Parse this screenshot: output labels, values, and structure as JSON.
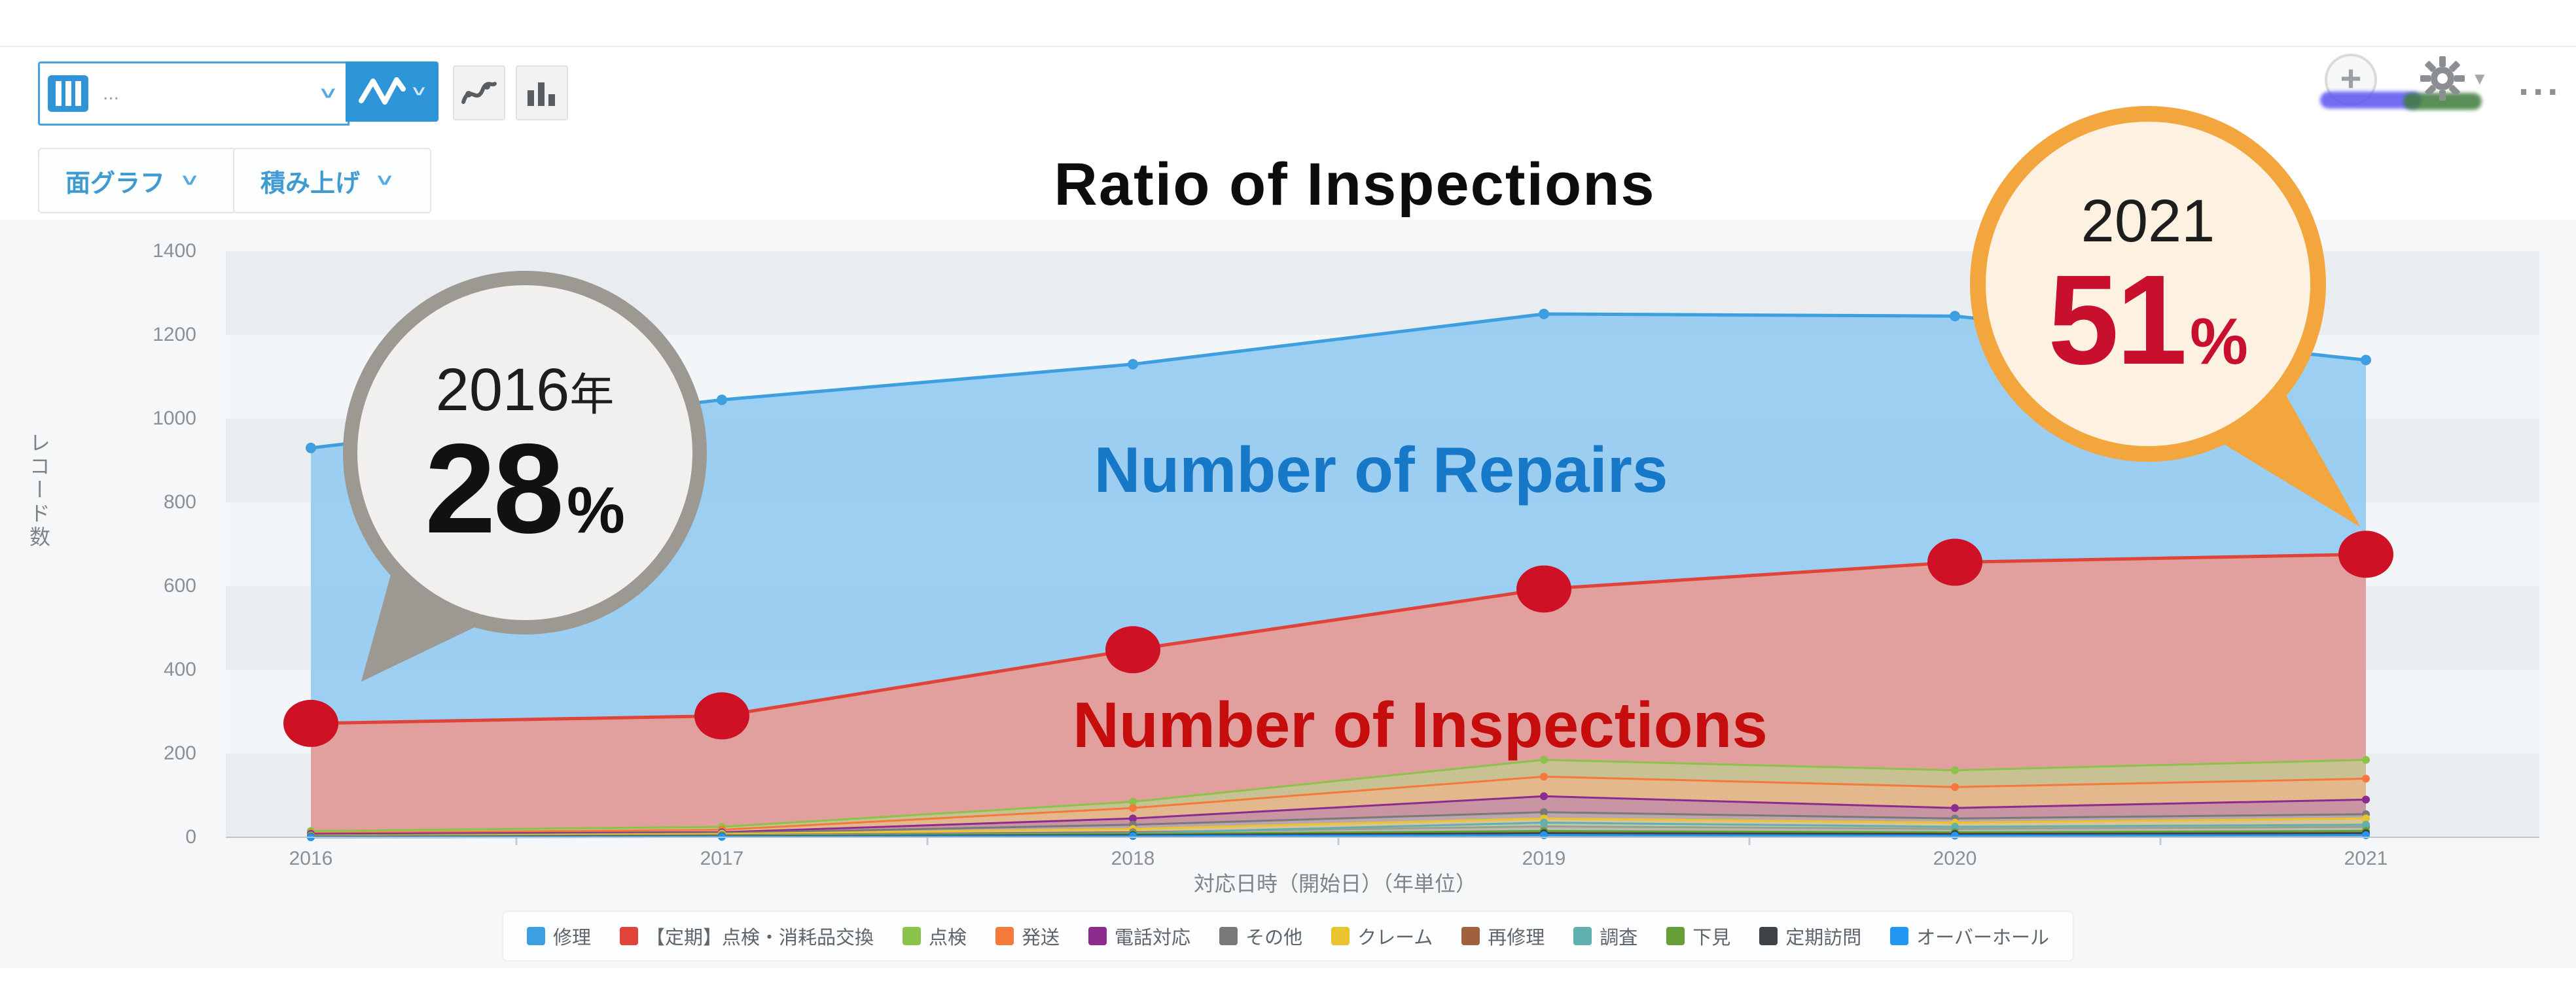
{
  "toolbar": {
    "view_selector_text": "...",
    "view_selector_icon": "table-grid-icon",
    "chart_type_button_icon": "line-chart-icon",
    "tool_button_1_icon": "curve-chart-icon",
    "tool_button_2_icon": "bar-chart-icon",
    "plus_button_icon": "plus-circle-icon",
    "settings_icon": "gear-icon",
    "more_label": "..."
  },
  "controls": {
    "chart_type_label": "面グラフ",
    "stack_label": "積み上げ"
  },
  "title": "Ratio of Inspections",
  "overlays": {
    "repairs_label": "Number of Repairs",
    "inspections_label": "Number of Inspections"
  },
  "callouts": [
    {
      "year": "2016",
      "year_suffix": "年",
      "value": "28",
      "unit": "%"
    },
    {
      "year": "2021",
      "year_suffix": "",
      "value": "51",
      "unit": "%"
    }
  ],
  "chart_data": {
    "type": "area",
    "stacked_label": "積み上げ",
    "x": [
      "2016",
      "2017",
      "2018",
      "2019",
      "2020",
      "2021"
    ],
    "xlabel": "対応日時（開始日）（年単位）",
    "ylabel": "レコード数",
    "ylim": [
      0,
      1400
    ],
    "ytick_step": 200,
    "grid": "striped-bands",
    "legend_position": "bottom",
    "series": [
      {
        "name": "修理",
        "color": "#3d9fe0",
        "fill": "#8fc9f0",
        "values": [
          930,
          1045,
          1130,
          1250,
          1245,
          1140
        ]
      },
      {
        "name": "【定期】点検・消耗品交換",
        "color": "#e04438",
        "fill": "#ea9a91",
        "values": [
          272,
          290,
          448,
          593,
          657,
          676
        ]
      },
      {
        "name": "点検",
        "color": "#8bc34a",
        "fill": "#b5dc8b",
        "values": [
          15,
          25,
          85,
          185,
          160,
          185
        ]
      },
      {
        "name": "発送",
        "color": "#f4793b",
        "fill": "#f8b086",
        "values": [
          10,
          18,
          70,
          145,
          120,
          140
        ]
      },
      {
        "name": "電話対応",
        "color": "#8e2b8e",
        "fill": "#b778b7",
        "values": [
          8,
          12,
          45,
          98,
          70,
          90
        ]
      },
      {
        "name": "その他",
        "color": "#77797b",
        "fill": "#b0b2b4",
        "values": [
          5,
          10,
          30,
          60,
          45,
          55
        ]
      },
      {
        "name": "クレーム",
        "color": "#e8c431",
        "fill": "#f2dd85",
        "values": [
          3,
          8,
          20,
          45,
          35,
          45
        ]
      },
      {
        "name": "再修理",
        "color": "#a0613f",
        "fill": "#c59a82",
        "values": [
          2,
          5,
          12,
          26,
          20,
          25
        ]
      },
      {
        "name": "調査",
        "color": "#62afb0",
        "fill": "#9fcfd0",
        "values": [
          2,
          4,
          10,
          35,
          25,
          30
        ]
      },
      {
        "name": "下見",
        "color": "#679e37",
        "fill": "#a3c67f",
        "values": [
          1,
          3,
          8,
          15,
          12,
          15
        ]
      },
      {
        "name": "定期訪問",
        "color": "#3f4345",
        "fill": "#8e9294",
        "values": [
          1,
          2,
          5,
          10,
          8,
          10
        ]
      },
      {
        "name": "オーバーホール",
        "color": "#2196f3",
        "fill": "#90c9f5",
        "values": [
          0,
          1,
          3,
          5,
          4,
          5
        ]
      }
    ],
    "annotation_dots": {
      "on_series": "【定期】点検・消耗品交換",
      "color": "#cf1126"
    }
  }
}
